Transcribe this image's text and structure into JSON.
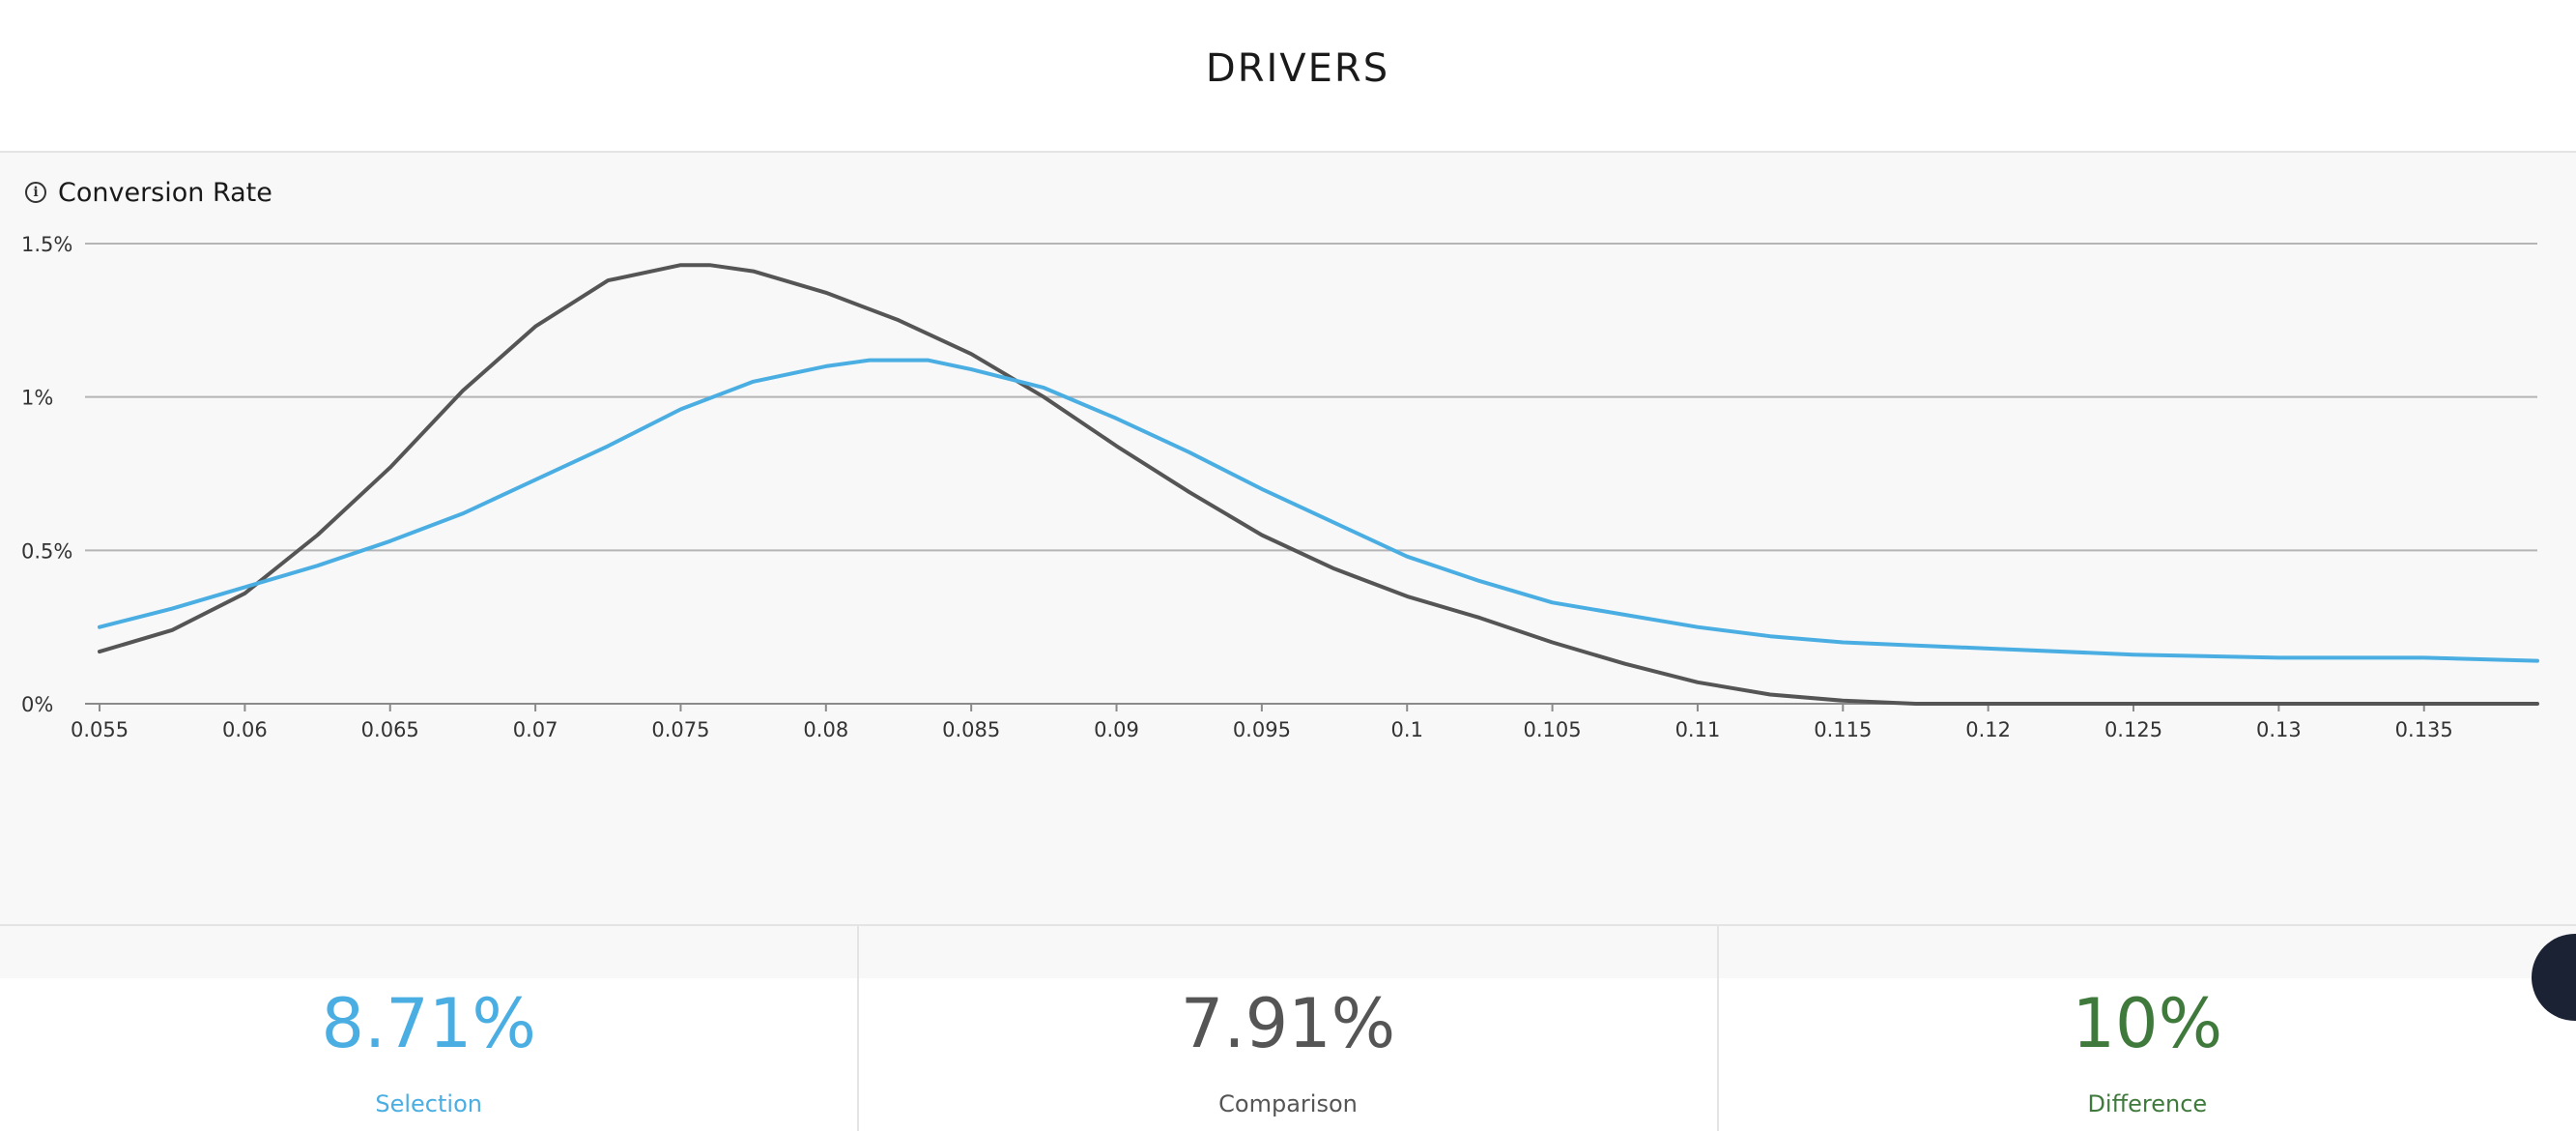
{
  "header": {
    "title": "DRIVERS"
  },
  "panel": {
    "title": "Conversion Rate",
    "info_icon": "info-circle-icon"
  },
  "chart_data": {
    "type": "line",
    "title": "Conversion Rate",
    "xlim": [
      0.0545,
      0.1389
    ],
    "ylim": [
      0,
      1.5
    ],
    "x_ticks": [
      0.055,
      0.06,
      0.065,
      0.07,
      0.075,
      0.08,
      0.085,
      0.09,
      0.095,
      0.1,
      0.105,
      0.11,
      0.115,
      0.12,
      0.125,
      0.13,
      0.135
    ],
    "x_tick_labels": [
      "0.055",
      "0.06",
      "0.065",
      "0.07",
      "0.075",
      "0.08",
      "0.085",
      "0.09",
      "0.095",
      "0.1",
      "0.105",
      "0.11",
      "0.115",
      "0.12",
      "0.125",
      "0.13",
      "0.135"
    ],
    "y_ticks": [
      0,
      0.5,
      1,
      1.5
    ],
    "y_tick_labels": [
      "0%",
      "0.5%",
      "1%",
      "1.5%"
    ],
    "grid": true,
    "series": [
      {
        "color": "#555555",
        "x": [
          0.055,
          0.0575,
          0.06,
          0.0625,
          0.065,
          0.0675,
          0.07,
          0.0725,
          0.075,
          0.076,
          0.0775,
          0.08,
          0.0825,
          0.085,
          0.0875,
          0.09,
          0.0925,
          0.095,
          0.0975,
          0.1,
          0.1025,
          0.105,
          0.1075,
          0.11,
          0.1125,
          0.115,
          0.1175,
          0.12,
          0.125,
          0.13,
          0.135,
          0.1389
        ],
        "y": [
          0.17,
          0.24,
          0.36,
          0.55,
          0.77,
          1.02,
          1.23,
          1.38,
          1.43,
          1.43,
          1.41,
          1.34,
          1.25,
          1.14,
          1.0,
          0.84,
          0.69,
          0.55,
          0.44,
          0.35,
          0.28,
          0.2,
          0.13,
          0.07,
          0.03,
          0.01,
          0.0,
          0.0,
          0.0,
          0.0,
          0.0,
          0.0
        ]
      },
      {
        "color": "#4aaee3",
        "x": [
          0.055,
          0.0575,
          0.06,
          0.0625,
          0.065,
          0.0675,
          0.07,
          0.0725,
          0.075,
          0.0775,
          0.08,
          0.0815,
          0.0835,
          0.085,
          0.0875,
          0.09,
          0.0925,
          0.095,
          0.0975,
          0.1,
          0.1025,
          0.105,
          0.1075,
          0.11,
          0.1125,
          0.115,
          0.1175,
          0.12,
          0.125,
          0.13,
          0.135,
          0.1389
        ],
        "y": [
          0.25,
          0.31,
          0.38,
          0.45,
          0.53,
          0.62,
          0.73,
          0.84,
          0.96,
          1.05,
          1.1,
          1.12,
          1.12,
          1.09,
          1.03,
          0.93,
          0.82,
          0.7,
          0.59,
          0.48,
          0.4,
          0.33,
          0.29,
          0.25,
          0.22,
          0.2,
          0.19,
          0.18,
          0.16,
          0.15,
          0.15,
          0.14
        ]
      }
    ]
  },
  "stats": [
    {
      "value": "8.71%",
      "label": "Selection",
      "color": "#4aaee3"
    },
    {
      "value": "7.91%",
      "label": "Comparison",
      "color": "#555555"
    },
    {
      "value": "10%",
      "label": "Difference",
      "color": "#3f7a3c"
    }
  ]
}
